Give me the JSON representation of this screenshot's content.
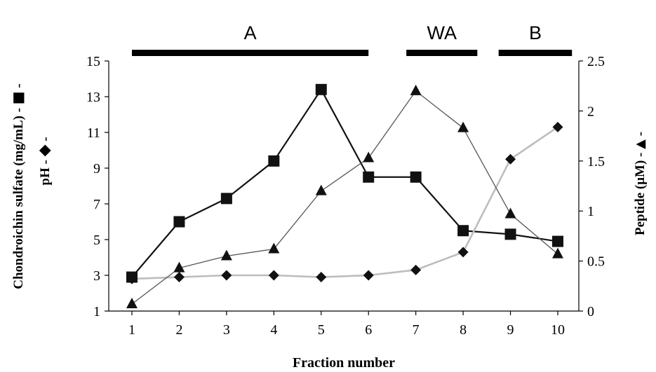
{
  "chart_data": {
    "type": "line",
    "xlabel": "Fraction number",
    "x": [
      1,
      2,
      3,
      4,
      5,
      6,
      7,
      8,
      9,
      10
    ],
    "xticks": [
      "1",
      "2",
      "3",
      "4",
      "5",
      "6",
      "7",
      "8",
      "9",
      "10"
    ],
    "left_axis": {
      "label_top": "Chondroichin sulfate (mg/mL) -",
      "label_bottom": "pH -",
      "label_suffix": "-",
      "ylim": [
        1,
        15
      ],
      "ticks": [
        "1",
        "3",
        "5",
        "7",
        "9",
        "11",
        "13",
        "15"
      ]
    },
    "right_axis": {
      "label": "Peptide (μM)  -",
      "label_suffix": "-",
      "ylim": [
        0,
        2.5
      ],
      "ticks": [
        "0",
        "0.5",
        "1",
        "1.5",
        "2",
        "2.5"
      ]
    },
    "series": [
      {
        "marker": "square",
        "axis": "left",
        "color": "#111111",
        "values": [
          2.9,
          6.0,
          7.3,
          9.4,
          13.4,
          8.5,
          8.5,
          5.5,
          5.3,
          4.9
        ]
      },
      {
        "marker": "diamond",
        "axis": "left",
        "color": "#111111",
        "line_color": "#bdbdbd",
        "values": [
          2.8,
          2.9,
          3.0,
          3.0,
          2.9,
          3.0,
          3.3,
          4.3,
          9.5,
          11.3
        ]
      },
      {
        "marker": "triangle",
        "axis": "right",
        "color": "#111111",
        "line_color": "#555555",
        "values": [
          0.07,
          0.43,
          0.55,
          0.62,
          1.2,
          1.53,
          2.2,
          1.83,
          0.97,
          0.57
        ]
      }
    ],
    "regions": [
      {
        "label": "A",
        "from": 1,
        "to": 6
      },
      {
        "label": "WA",
        "from": 6.8,
        "to": 8.3
      },
      {
        "label": "B",
        "from": 8.75,
        "to": 10.3
      }
    ],
    "grid": false
  }
}
